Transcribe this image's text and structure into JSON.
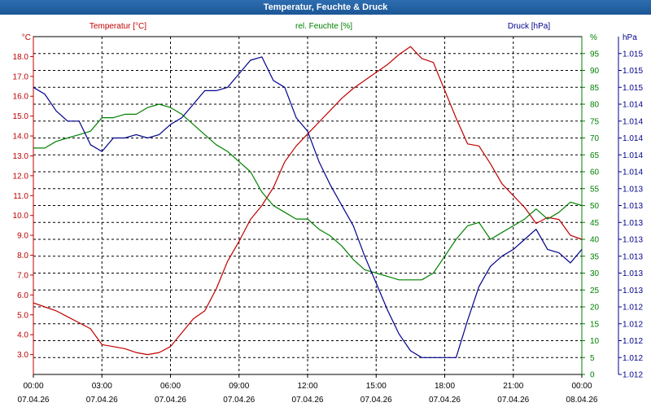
{
  "window": {
    "title": "Temperatur, Feuchte & Druck"
  },
  "chart_data": {
    "type": "line",
    "title": "Temperatur, Feuchte & Druck",
    "colors": {
      "temperature": "#c00000",
      "humidity": "#008000",
      "pressure": "#00008b",
      "grid": "#000000",
      "titlebar": "#1f5f9e"
    },
    "x_hours": [
      0,
      0.5,
      1,
      1.5,
      2,
      2.5,
      3,
      3.5,
      4,
      4.5,
      5,
      5.5,
      6,
      6.5,
      7,
      7.5,
      8,
      8.5,
      9,
      9.5,
      10,
      10.5,
      11,
      11.5,
      12,
      12.5,
      13,
      13.5,
      14,
      14.5,
      15,
      15.5,
      16,
      16.5,
      17,
      17.5,
      18,
      18.5,
      19,
      19.5,
      20,
      20.5,
      21,
      21.5,
      22,
      22.5,
      23,
      23.5,
      24
    ],
    "x_ticks": [
      {
        "time": "00:00",
        "date": "07.04.26"
      },
      {
        "time": "03:00",
        "date": "07.04.26"
      },
      {
        "time": "06:00",
        "date": "07.04.26"
      },
      {
        "time": "09:00",
        "date": "07.04.26"
      },
      {
        "time": "12:00",
        "date": "07.04.26"
      },
      {
        "time": "15:00",
        "date": "07.04.26"
      },
      {
        "time": "18:00",
        "date": "07.04.26"
      },
      {
        "time": "21:00",
        "date": "07.04.26"
      },
      {
        "time": "00:00",
        "date": "08.04.26"
      }
    ],
    "axes": {
      "left": {
        "unit": "°C",
        "ylim": [
          2.0,
          19.0
        ],
        "ticks": [
          "3.0",
          "4.0",
          "5.0",
          "6.0",
          "7.0",
          "8.0",
          "9.0",
          "10.0",
          "11.0",
          "12.0",
          "13.0",
          "14.0",
          "15.0",
          "16.0",
          "17.0",
          "18.0"
        ]
      },
      "mid": {
        "unit": "%",
        "ylim": [
          0,
          100
        ],
        "ticks": [
          "0",
          "5",
          "10",
          "15",
          "20",
          "25",
          "30",
          "35",
          "40",
          "45",
          "50",
          "55",
          "60",
          "65",
          "70",
          "75",
          "80",
          "85",
          "90",
          "95"
        ]
      },
      "right": {
        "unit": "hPa",
        "ylim": [
          0,
          100
        ],
        "ticks": [
          "1.012",
          "1.012",
          "1.012",
          "1.012",
          "1.012",
          "1.013",
          "1.013",
          "1.013",
          "1.013",
          "1.013",
          "1.013",
          "1.013",
          "1.014",
          "1.014",
          "1.014",
          "1.014",
          "1.014",
          "1.015",
          "1.015",
          "1.015"
        ]
      }
    },
    "series": [
      {
        "name": "Temperatur [°C]",
        "key": "temperature",
        "axis": "left",
        "values": [
          5.6,
          5.4,
          5.2,
          4.9,
          4.6,
          4.3,
          3.5,
          3.4,
          3.3,
          3.1,
          3.0,
          3.1,
          3.4,
          4.1,
          4.8,
          5.2,
          6.3,
          7.7,
          8.7,
          9.8,
          10.5,
          11.4,
          12.7,
          13.5,
          14.1,
          14.7,
          15.3,
          15.9,
          16.4,
          16.8,
          17.2,
          17.6,
          18.1,
          18.5,
          17.9,
          17.7,
          16.3,
          14.9,
          13.6,
          13.5,
          12.6,
          11.6,
          11.0,
          10.4,
          9.6,
          9.9,
          9.8,
          9.0,
          8.8
        ]
      },
      {
        "name": "rel. Feuchte [%]",
        "key": "humidity",
        "axis": "mid",
        "values": [
          67,
          67,
          69,
          70,
          71,
          72,
          76,
          76,
          77,
          77,
          79,
          80,
          79,
          77,
          74,
          71,
          68,
          66,
          63,
          60,
          54,
          50,
          48,
          46,
          46,
          43,
          41,
          38,
          34,
          31,
          30,
          29,
          28,
          28,
          28,
          30,
          35,
          40,
          44,
          45,
          40,
          42,
          44,
          46,
          49,
          46,
          48,
          51,
          50
        ]
      },
      {
        "name": "Druck [hPa]",
        "key": "pressure",
        "axis": "right",
        "values": [
          85,
          83,
          78,
          75,
          75,
          68,
          66,
          70,
          70,
          71,
          70,
          71,
          74,
          76,
          80,
          84,
          84,
          85,
          89,
          93,
          94,
          87,
          85,
          76,
          72,
          63,
          56,
          50,
          44,
          35,
          27,
          19,
          12,
          7,
          5,
          5,
          5,
          5,
          16,
          26,
          32,
          35,
          37,
          40,
          43,
          37,
          36,
          33,
          37
        ]
      }
    ]
  }
}
